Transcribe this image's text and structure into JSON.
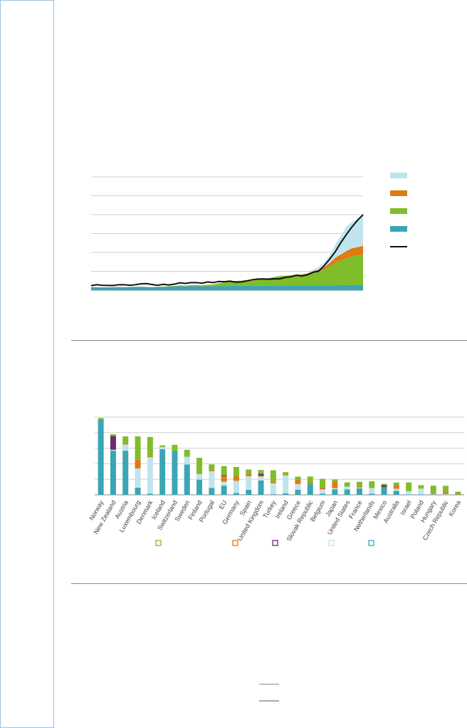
{
  "colors": {
    "light_blue": "#bfe4ee",
    "orange": "#e07b11",
    "green": "#7fbd2a",
    "teal": "#3aa6b5",
    "purple": "#6b2d6e",
    "black": "#111111",
    "grid": "#d0d0d0"
  },
  "chart_data": [
    {
      "type": "area",
      "title": "",
      "xlabel": "",
      "ylabel": "",
      "grid": true,
      "legend": "right",
      "ylim": [
        0,
        60
      ],
      "x": [
        1,
        2,
        3,
        4,
        5,
        6,
        7,
        8,
        9,
        10,
        11,
        12,
        13,
        14,
        15,
        16,
        17,
        18,
        19,
        20,
        21,
        22,
        23,
        24,
        25,
        26,
        27,
        28,
        29,
        30,
        31,
        32,
        33,
        34,
        35,
        36,
        37,
        38,
        39,
        40,
        41,
        42,
        43,
        44,
        45,
        46,
        47,
        48,
        49,
        50
      ],
      "series": [
        {
          "color_key": "teal",
          "values": [
            1.6,
            1.6,
            1.5,
            1.5,
            1.6,
            1.7,
            1.6,
            1.7,
            1.8,
            1.8,
            1.7,
            1.6,
            1.7,
            1.8,
            1.9,
            2.0,
            2.1,
            2.0,
            2.2,
            2.1,
            2.0,
            2.1,
            2.0,
            2.2,
            2.2,
            2.2,
            2.3,
            2.2,
            2.3,
            2.2,
            2.3,
            2.3,
            2.4,
            2.4,
            2.5,
            2.4,
            2.4,
            2.5,
            2.4,
            2.5,
            2.5,
            2.6,
            2.6,
            2.6,
            2.6,
            2.7,
            2.7,
            2.8,
            2.8,
            2.9
          ]
        },
        {
          "color_key": "green",
          "values": [
            0,
            0,
            0,
            0,
            0,
            0,
            0,
            0,
            0,
            0,
            0,
            0.1,
            0.1,
            0.1,
            0.2,
            0.3,
            0.4,
            0.4,
            0.5,
            0.6,
            0.6,
            0.8,
            1,
            1.5,
            2,
            2.4,
            2.6,
            2.8,
            3,
            2.8,
            3.4,
            3.6,
            4,
            4.6,
            5,
            5.2,
            5.4,
            5.6,
            5.8,
            6,
            7,
            7.4,
            8.4,
            10,
            12,
            13,
            14.2,
            15.2,
            15.6,
            16
          ]
        },
        {
          "color_key": "orange",
          "values": [
            0,
            0,
            0,
            0,
            0,
            0,
            0,
            0,
            0,
            0,
            0,
            0,
            0,
            0,
            0,
            0,
            0,
            0,
            0,
            0,
            0,
            0,
            0,
            0,
            0,
            0,
            0,
            0,
            0,
            0,
            0,
            0,
            0,
            0,
            0.1,
            0.1,
            0.1,
            0.2,
            0.2,
            0.3,
            0.6,
            0.8,
            1.2,
            1.8,
            2.6,
            3.2,
            3.8,
            4.2,
            4.4,
            4.6
          ]
        },
        {
          "color_key": "light_blue",
          "values": [
            0,
            0,
            0,
            0,
            0,
            0,
            0,
            0,
            0,
            0,
            0,
            0,
            0,
            0,
            0,
            0,
            0,
            0,
            0,
            0,
            0,
            0,
            0,
            0,
            0,
            0,
            0,
            0,
            0,
            0,
            0,
            0,
            0,
            0,
            0,
            0,
            0,
            0.1,
            0.2,
            0.4,
            0.8,
            1.4,
            2.4,
            4,
            7,
            10,
            13,
            14,
            15,
            16
          ]
        }
      ],
      "total": [
        2.4,
        2.9,
        2.6,
        2.5,
        2.5,
        2.9,
        2.9,
        2.6,
        2.9,
        3.4,
        3.5,
        3.0,
        2.6,
        3.1,
        2.8,
        3.2,
        3.9,
        3.6,
        4.0,
        4.0,
        3.7,
        4.4,
        4.0,
        4.6,
        4.5,
        4.8,
        4.3,
        4.4,
        4.9,
        5.5,
        5.9,
        6.0,
        5.8,
        6.0,
        6.0,
        6.8,
        7.1,
        7.9,
        7.5,
        8.2,
        9.5,
        10.1,
        13.0,
        16.5,
        20.4,
        25.2,
        29.5,
        33.5,
        37.0,
        40.0
      ]
    },
    {
      "type": "bar",
      "title": "",
      "xlabel": "",
      "ylabel": "",
      "grid": true,
      "legend": "bottom",
      "ylim": [
        0,
        50
      ],
      "categories": [
        "Norway",
        "New Zealand",
        "Austria",
        "Luxembourg",
        "Denmark",
        "Iceland",
        "Switzerland",
        "Sweden",
        "Finland",
        "Portugal",
        "EU",
        "Germany",
        "Spain",
        "United Kingdom",
        "Turkey",
        "Ireland",
        "Greece",
        "Slovak Republic",
        "Belgium",
        "Japan",
        "United States",
        "France",
        "Netherlands",
        "Mexico",
        "Australia",
        "Israel",
        "Poland",
        "Hungary",
        "Czech Republic",
        "Korea"
      ],
      "series": [
        {
          "color_key": "teal",
          "values": [
            48.6,
            28.4,
            28.4,
            4.6,
            0.8,
            29.4,
            28.2,
            19.5,
            9.8,
            4.5,
            5.9,
            1.2,
            3.2,
            9.3,
            0.4,
            0.9,
            3.2,
            7.0,
            0.8,
            3.6,
            3.5,
            4.2,
            0.7,
            4.9,
            2.6,
            0.2,
            0.2,
            0.2,
            0.2,
            0.2
          ]
        },
        {
          "color_key": "light_blue",
          "values": [
            0,
            0.6,
            4,
            12.4,
            23.4,
            1.3,
            0,
            5,
            3.6,
            10.7,
            2.5,
            7.8,
            8.8,
            2.4,
            7,
            11.6,
            3.8,
            0,
            2.7,
            0.7,
            1.8,
            0.5,
            3.6,
            0,
            1.3,
            2.2,
            3.8,
            0.3,
            0.4,
            0
          ]
        },
        {
          "color_key": "orange",
          "values": [
            0,
            0,
            0.6,
            5.6,
            0.6,
            0,
            0,
            0,
            0,
            0.6,
            3.7,
            3.1,
            1.3,
            0.6,
            1,
            0.6,
            2.7,
            1,
            1.4,
            4.3,
            0,
            1,
            0.2,
            0,
            2.1,
            0,
            0,
            0.8,
            1.3,
            0.2
          ]
        },
        {
          "color_key": "purple",
          "values": [
            0,
            8.9,
            0,
            0,
            0,
            0,
            0,
            0,
            0,
            0,
            0.6,
            0,
            0,
            1.3,
            0,
            0,
            0,
            0,
            0,
            0,
            0,
            0,
            0,
            1.3,
            0,
            0,
            0,
            0,
            0,
            0
          ]
        },
        {
          "color_key": "green",
          "values": [
            0.8,
            1.1,
            4.6,
            15,
            12.4,
            1.1,
            4,
            4.5,
            10.4,
            3.8,
            5.8,
            5.8,
            3,
            2.4,
            7.4,
            1.5,
            2,
            3.8,
            5.4,
            1.3,
            2.7,
            2.7,
            4.3,
            0.9,
            1.9,
            5.6,
            2.2,
            4.6,
            3.9,
            1.6
          ]
        }
      ]
    }
  ]
}
